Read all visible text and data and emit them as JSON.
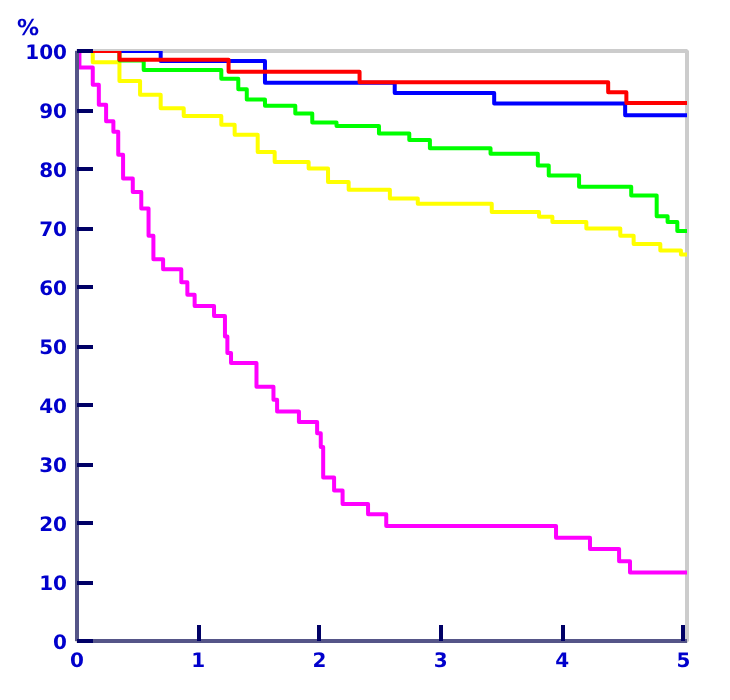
{
  "chart_data": {
    "type": "step",
    "ylabel": "%",
    "xlim": [
      0,
      5.03
    ],
    "ylim": [
      0,
      100
    ],
    "xticks": [
      0,
      1,
      2,
      3,
      4,
      5
    ],
    "yticks": [
      0,
      10,
      20,
      30,
      40,
      50,
      60,
      70,
      80,
      90,
      100
    ],
    "grid": false,
    "marker": "none",
    "line_style": "solid",
    "series": [
      {
        "color": "#ff0000",
        "x": [
          0,
          0.35,
          1.25,
          2.33,
          4.38,
          4.53,
          5.03
        ],
        "values": [
          100,
          98.5,
          96.5,
          94.7,
          93,
          91.2,
          91.2
        ]
      },
      {
        "color": "#0000ff",
        "x": [
          0,
          0.69,
          1.55,
          2.62,
          3.44,
          4.52,
          5.03
        ],
        "values": [
          100,
          98.3,
          94.6,
          92.9,
          91.1,
          89.1,
          89.1
        ]
      },
      {
        "color": "#00ff00",
        "x": [
          0,
          0.35,
          0.55,
          1.19,
          1.33,
          1.4,
          1.55,
          1.8,
          1.94,
          2.14,
          2.49,
          2.74,
          2.91,
          3.41,
          3.8,
          3.89,
          4.14,
          4.57,
          4.78,
          4.87,
          4.95,
          5.03
        ],
        "values": [
          100,
          98.4,
          96.8,
          95.3,
          93.5,
          91.8,
          90.7,
          89.4,
          87.9,
          87.3,
          86,
          84.9,
          83.5,
          82.6,
          80.6,
          78.9,
          77,
          75.5,
          72,
          71,
          69.5,
          69.5
        ]
      },
      {
        "color": "#ffff00",
        "x": [
          0,
          0.13,
          0.35,
          0.52,
          0.69,
          0.88,
          1.19,
          1.3,
          1.49,
          1.63,
          1.91,
          2.07,
          2.24,
          2.58,
          2.81,
          3.42,
          3.81,
          3.92,
          4.2,
          4.48,
          4.59,
          4.81,
          4.98,
          5.03
        ],
        "values": [
          100,
          98.1,
          94.9,
          92.6,
          90.3,
          89,
          87.5,
          85.8,
          82.9,
          81.2,
          80.1,
          77.8,
          76.5,
          75,
          74.1,
          72.7,
          71.9,
          71,
          69.9,
          68.7,
          67.3,
          66.2,
          65.5,
          65.5
        ]
      },
      {
        "color": "#ff00ff",
        "x": [
          0,
          0.02,
          0.13,
          0.18,
          0.24,
          0.3,
          0.34,
          0.38,
          0.46,
          0.53,
          0.59,
          0.63,
          0.71,
          0.86,
          0.91,
          0.97,
          1.13,
          1.22,
          1.24,
          1.27,
          1.48,
          1.62,
          1.65,
          1.83,
          1.98,
          2.01,
          2.03,
          2.12,
          2.19,
          2.4,
          2.55,
          3.95,
          4.23,
          4.47,
          4.56,
          5.03
        ],
        "values": [
          100,
          97.2,
          94.3,
          90.9,
          88.1,
          86.3,
          82.4,
          78.4,
          76.1,
          73.3,
          68.7,
          64.7,
          63,
          60.8,
          58.7,
          56.8,
          55.1,
          51.6,
          48.8,
          47.1,
          43.1,
          40.9,
          38.9,
          37.1,
          35.2,
          32.9,
          27.7,
          25.5,
          23.2,
          21.5,
          19.5,
          17.5,
          15.6,
          13.5,
          11.6,
          11.6
        ]
      }
    ]
  }
}
